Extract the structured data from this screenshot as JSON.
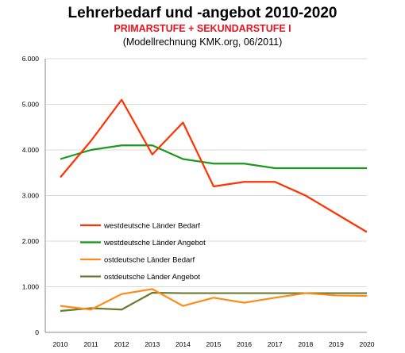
{
  "chart_data": {
    "type": "line",
    "title": "Lehrerbedarf und -angebot 2010-2020",
    "subtitle": "PRIMARSTUFE + SEKUNDARSTUFE I",
    "note": "(Modellrechnung KMK.org, 06/2011)",
    "x": [
      "2010",
      "2011",
      "2012",
      "2013",
      "2014",
      "2015",
      "2016",
      "2017",
      "2018",
      "2019",
      "2020"
    ],
    "y_ticks": [
      "0",
      "1.000",
      "2.000",
      "3.000",
      "4.000",
      "5.000",
      "6.000"
    ],
    "ylim": [
      0,
      6000
    ],
    "grid": "horizontal",
    "legend_position": "center-left",
    "series": [
      {
        "name": "westdeutsche Länder Bedarf",
        "color": "#ff3300",
        "values": [
          3400,
          4200,
          5100,
          3900,
          4600,
          3200,
          3300,
          3300,
          3000,
          2600,
          2200
        ]
      },
      {
        "name": "westdeutsche Länder Angebot",
        "color": "#1a9a1a",
        "values": [
          3800,
          4000,
          4100,
          4100,
          3800,
          3700,
          3700,
          3600,
          3600,
          3600,
          3600
        ]
      },
      {
        "name": "ostdeutsche Länder Bedarf",
        "color": "#ff8c1a",
        "values": [
          580,
          500,
          840,
          950,
          580,
          760,
          650,
          760,
          860,
          810,
          800
        ]
      },
      {
        "name": "ostdeutsche Länder Angebot",
        "color": "#6b7a2e",
        "values": [
          470,
          530,
          500,
          870,
          860,
          860,
          860,
          860,
          860,
          860,
          860
        ]
      }
    ]
  }
}
